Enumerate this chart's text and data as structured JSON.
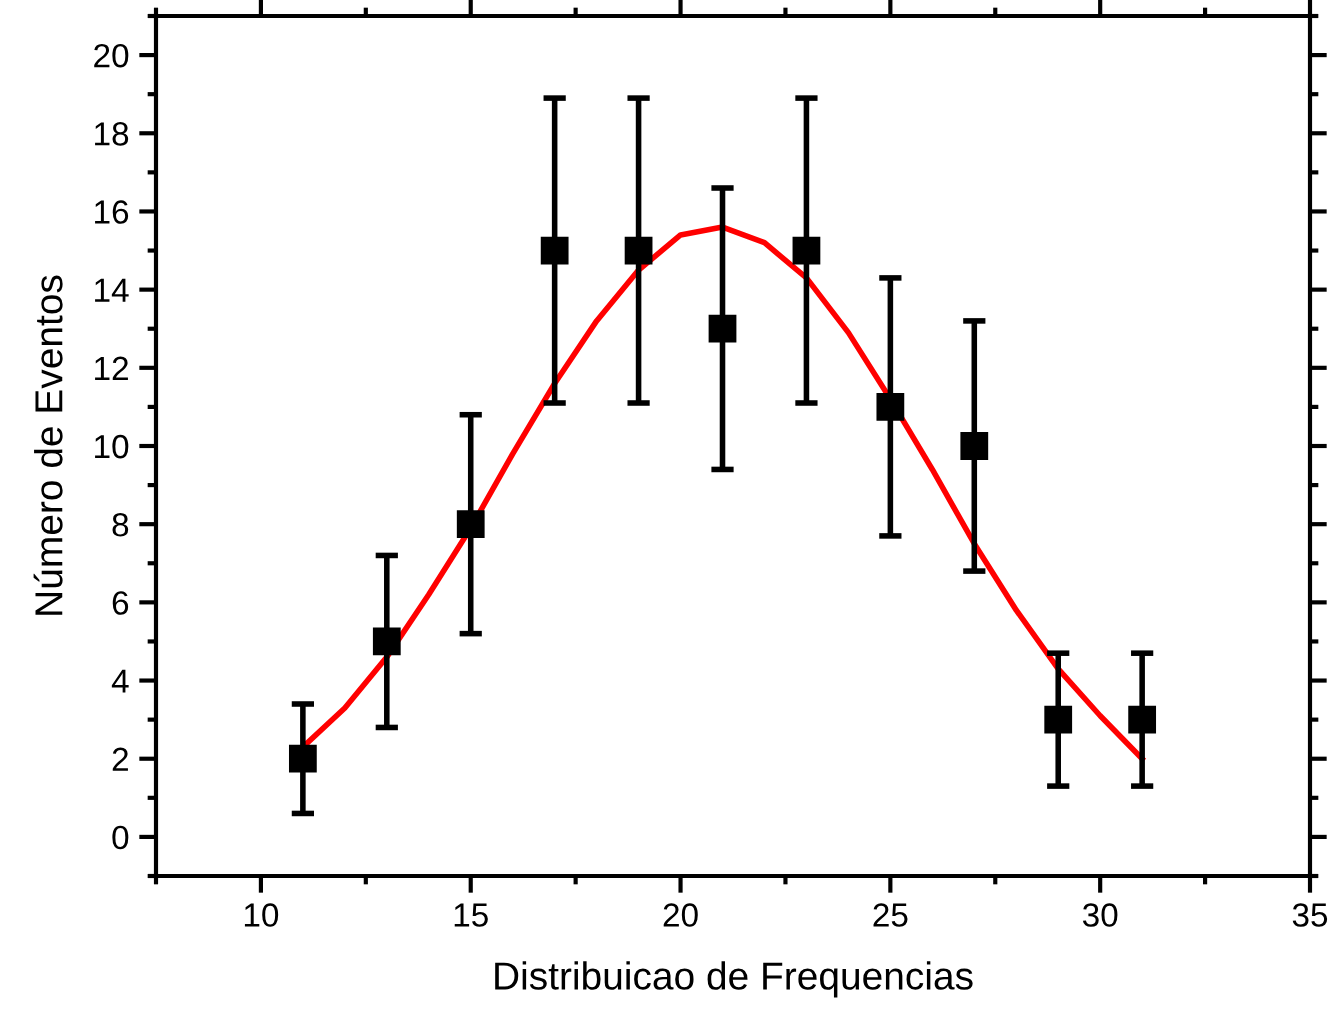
{
  "chart_data": {
    "type": "scatter",
    "xlabel": "Distribuicao de Frequencias",
    "ylabel": "Número de Eventos",
    "xlim": [
      7.5,
      35
    ],
    "xticks": [
      10,
      15,
      20,
      25,
      30,
      35
    ],
    "ylim": [
      -1,
      21
    ],
    "yticks": [
      0,
      2,
      4,
      6,
      8,
      10,
      12,
      14,
      16,
      18,
      20
    ],
    "grid": false,
    "legend": false,
    "series": [
      {
        "color": "#000000",
        "marker": "square",
        "x": [
          11,
          13,
          15,
          17,
          19,
          21,
          23,
          25,
          27,
          29,
          31
        ],
        "values": [
          2,
          5,
          8,
          15,
          15,
          13,
          15,
          11,
          10,
          3,
          3
        ],
        "errors": [
          1.4,
          2.2,
          2.8,
          3.9,
          3.9,
          3.6,
          3.9,
          3.3,
          3.2,
          1.7,
          1.7
        ]
      },
      {
        "type": "line",
        "color": "#ff0000",
        "marker": "none",
        "line_style": "solid",
        "x": [
          11,
          12,
          13,
          14,
          15,
          16,
          17,
          18,
          19,
          20,
          21,
          22,
          23,
          24,
          25,
          26,
          27,
          28,
          29,
          30,
          31
        ],
        "values": [
          2.3,
          3.3,
          4.6,
          6.2,
          7.9,
          9.8,
          11.6,
          13.2,
          14.5,
          15.4,
          15.6,
          15.2,
          14.3,
          12.9,
          11.2,
          9.4,
          7.5,
          5.8,
          4.3,
          3.1,
          2.0
        ]
      }
    ]
  }
}
